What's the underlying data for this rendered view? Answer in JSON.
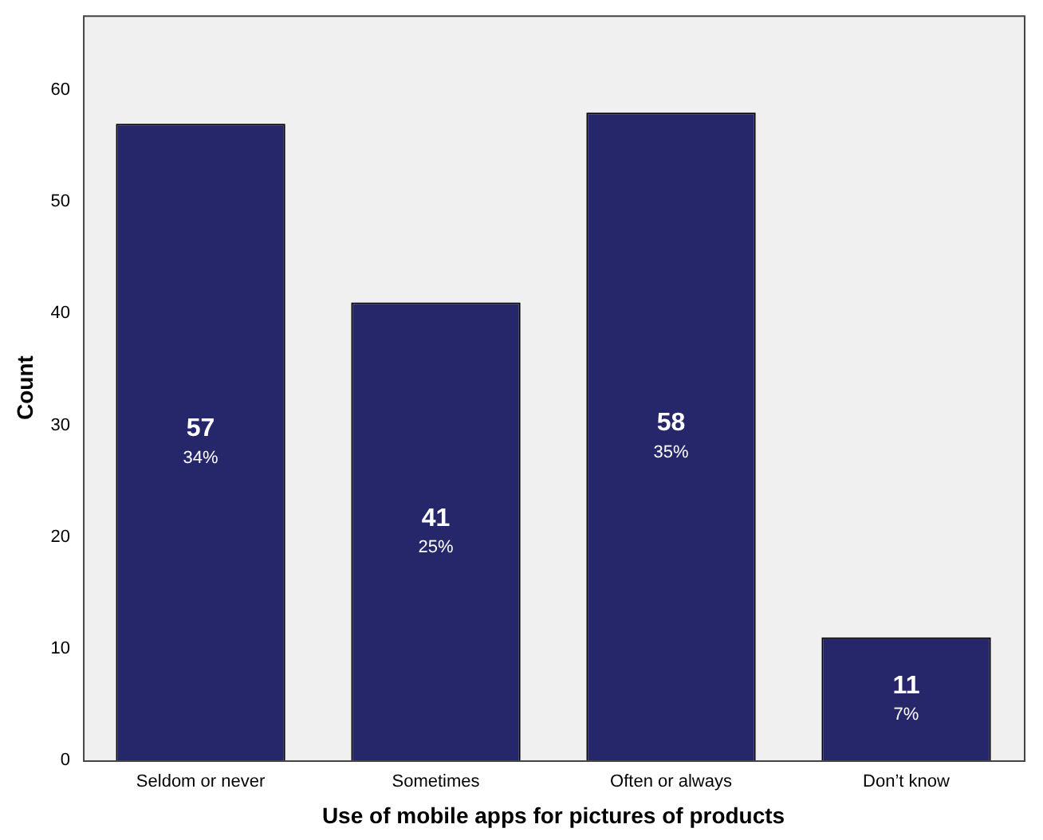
{
  "chart_data": {
    "type": "bar",
    "xlabel": "Use of mobile apps for pictures of products",
    "ylabel": "Count",
    "categories": [
      "Seldom or never",
      "Sometimes",
      "Often or always",
      "Don’t know"
    ],
    "values": [
      57,
      41,
      58,
      11
    ],
    "value_labels": [
      "57\n34%",
      "41\n25%",
      "58\n35%",
      "11\n7%"
    ],
    "color": "#26276b",
    "ylim": [
      0,
      66.7
    ],
    "yticks": [
      0,
      10,
      20,
      30,
      40,
      50,
      60
    ],
    "grid": false,
    "legend": false
  }
}
